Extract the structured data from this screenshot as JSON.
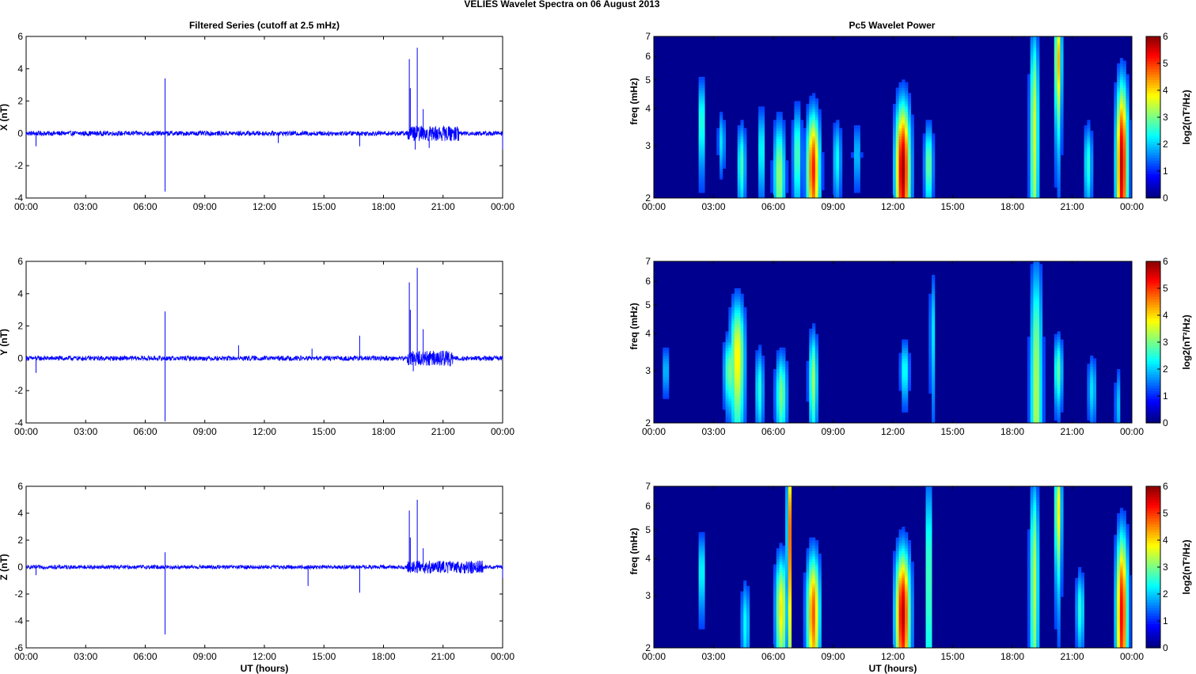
{
  "figure": {
    "title": "VELIES Wavelet Spectra on 06 August    2013",
    "left_title": "Filtered Series (cutoff at 2.5 mHz)",
    "right_title": "Pc5 Wavelet Power",
    "xlabel": "UT (hours)",
    "x_ticks": [
      "00:00",
      "03:00",
      "06:00",
      "09:00",
      "12:00",
      "15:00",
      "18:00",
      "21:00",
      "00:00"
    ],
    "freq_ylabel": "freq (mHz)",
    "freq_ticks": [
      "2",
      "3",
      "4",
      "5",
      "6",
      "7"
    ],
    "colorbar_label": "log2(nT²/Hz)",
    "colorbar_ticks": [
      "0",
      "1",
      "2",
      "3",
      "4",
      "5",
      "6"
    ]
  },
  "colors": {
    "trace": "#0000ff",
    "background_spec": "#00008f"
  },
  "chart_data": [
    {
      "type": "line",
      "component": "X",
      "ylabel": "X (nT)",
      "xlim": [
        0,
        24
      ],
      "ylim": [
        -4,
        6
      ],
      "y_ticks": [
        -4,
        -2,
        0,
        2,
        4,
        6
      ],
      "noise_amplitude_nT": 0.15,
      "spikes": [
        {
          "t": 0.5,
          "v": -0.8
        },
        {
          "t": 7.0,
          "v": 3.4
        },
        {
          "t": 7.0,
          "v": -3.6
        },
        {
          "t": 12.7,
          "v": -0.6
        },
        {
          "t": 16.8,
          "v": -0.8
        },
        {
          "t": 19.3,
          "v": 4.6
        },
        {
          "t": 19.35,
          "v": 2.8
        },
        {
          "t": 19.6,
          "v": -1.0
        },
        {
          "t": 19.7,
          "v": 5.3
        },
        {
          "t": 20.0,
          "v": 1.5
        },
        {
          "t": 20.3,
          "v": -0.9
        },
        {
          "t": 24.0,
          "v": -1.0
        }
      ],
      "active_intervals": [
        [
          19.2,
          21.8
        ]
      ]
    },
    {
      "type": "line",
      "component": "Y",
      "ylabel": "Y (nT)",
      "xlim": [
        0,
        24
      ],
      "ylim": [
        -4,
        6
      ],
      "y_ticks": [
        -4,
        -2,
        0,
        2,
        4,
        6
      ],
      "noise_amplitude_nT": 0.15,
      "spikes": [
        {
          "t": 0.5,
          "v": -0.9
        },
        {
          "t": 7.0,
          "v": 2.9
        },
        {
          "t": 7.0,
          "v": -3.9
        },
        {
          "t": 10.7,
          "v": 0.8
        },
        {
          "t": 14.4,
          "v": 0.6
        },
        {
          "t": 16.8,
          "v": 1.4
        },
        {
          "t": 19.3,
          "v": 4.7
        },
        {
          "t": 19.35,
          "v": 3.0
        },
        {
          "t": 19.5,
          "v": -0.8
        },
        {
          "t": 19.7,
          "v": 5.6
        },
        {
          "t": 20.0,
          "v": 1.8
        }
      ],
      "active_intervals": [
        [
          19.2,
          21.5
        ]
      ]
    },
    {
      "type": "line",
      "component": "Z",
      "ylabel": "Z (nT)",
      "xlim": [
        0,
        24
      ],
      "ylim": [
        -6,
        6
      ],
      "y_ticks": [
        -6,
        -4,
        -2,
        0,
        2,
        4,
        6
      ],
      "noise_amplitude_nT": 0.15,
      "spikes": [
        {
          "t": 0.5,
          "v": -0.6
        },
        {
          "t": 7.0,
          "v": 1.1
        },
        {
          "t": 7.0,
          "v": -5.0
        },
        {
          "t": 14.2,
          "v": -1.4
        },
        {
          "t": 16.8,
          "v": -1.9
        },
        {
          "t": 19.3,
          "v": 4.2
        },
        {
          "t": 19.35,
          "v": 2.2
        },
        {
          "t": 19.7,
          "v": 5.0
        },
        {
          "t": 20.0,
          "v": 1.4
        },
        {
          "t": 24.0,
          "v": -0.8
        }
      ],
      "active_intervals": [
        [
          19.2,
          23.0
        ]
      ]
    },
    {
      "type": "heatmap",
      "component": "X",
      "xlim": [
        0,
        24
      ],
      "ylim_mHz": [
        2,
        7
      ],
      "y_scale": "log",
      "color_range": [
        0,
        6
      ],
      "blobs": [
        {
          "t": 2.4,
          "f": 3.6,
          "w": 0.12,
          "h": 0.9,
          "p": 2.3
        },
        {
          "t": 3.4,
          "f": 3.1,
          "w": 0.12,
          "h": 0.5,
          "p": 1.6
        },
        {
          "t": 4.4,
          "f": 2.6,
          "w": 0.15,
          "h": 0.6,
          "p": 2.2
        },
        {
          "t": 5.4,
          "f": 2.9,
          "w": 0.12,
          "h": 0.7,
          "p": 2.0
        },
        {
          "t": 6.3,
          "f": 2.4,
          "w": 0.2,
          "h": 0.8,
          "p": 2.8
        },
        {
          "t": 7.2,
          "f": 2.8,
          "w": 0.15,
          "h": 0.8,
          "p": 2.4
        },
        {
          "t": 8.0,
          "f": 2.5,
          "w": 0.22,
          "h": 0.9,
          "p": 5.0
        },
        {
          "t": 9.2,
          "f": 2.7,
          "w": 0.15,
          "h": 0.6,
          "p": 1.8
        },
        {
          "t": 10.2,
          "f": 2.8,
          "w": 0.15,
          "h": 0.5,
          "p": 1.4
        },
        {
          "t": 12.5,
          "f": 2.5,
          "w": 0.25,
          "h": 1.1,
          "p": 5.8
        },
        {
          "t": 13.8,
          "f": 2.6,
          "w": 0.15,
          "h": 0.6,
          "p": 2.6
        },
        {
          "t": 19.1,
          "f": 3.4,
          "w": 0.15,
          "h": 2.5,
          "p": 3.2
        },
        {
          "t": 20.3,
          "f": 5.8,
          "w": 0.12,
          "h": 2.0,
          "p": 4.0
        },
        {
          "t": 21.8,
          "f": 2.6,
          "w": 0.15,
          "h": 0.6,
          "p": 2.0
        },
        {
          "t": 23.5,
          "f": 2.6,
          "w": 0.2,
          "h": 1.5,
          "p": 5.6
        }
      ]
    },
    {
      "type": "heatmap",
      "component": "Y",
      "xlim": [
        0,
        24
      ],
      "ylim_mHz": [
        2,
        7
      ],
      "y_scale": "log",
      "color_range": [
        0,
        6
      ],
      "blobs": [
        {
          "t": 0.6,
          "f": 3.0,
          "w": 0.1,
          "h": 0.4,
          "p": 1.6
        },
        {
          "t": 3.8,
          "f": 3.0,
          "w": 0.2,
          "h": 0.6,
          "p": 2.6
        },
        {
          "t": 4.2,
          "f": 3.3,
          "w": 0.25,
          "h": 1.2,
          "p": 3.6
        },
        {
          "t": 5.3,
          "f": 2.6,
          "w": 0.15,
          "h": 0.6,
          "p": 2.0
        },
        {
          "t": 6.4,
          "f": 2.5,
          "w": 0.2,
          "h": 0.6,
          "p": 2.6
        },
        {
          "t": 8.0,
          "f": 2.8,
          "w": 0.15,
          "h": 0.8,
          "p": 2.8
        },
        {
          "t": 12.6,
          "f": 3.0,
          "w": 0.15,
          "h": 0.5,
          "p": 2.0
        },
        {
          "t": 14.0,
          "f": 4.0,
          "w": 0.1,
          "h": 1.5,
          "p": 1.6
        },
        {
          "t": 19.2,
          "f": 2.4,
          "w": 0.2,
          "h": 2.8,
          "p": 3.0
        },
        {
          "t": 20.3,
          "f": 3.0,
          "w": 0.15,
          "h": 0.6,
          "p": 2.4
        },
        {
          "t": 22.0,
          "f": 2.6,
          "w": 0.15,
          "h": 0.5,
          "p": 1.6
        },
        {
          "t": 23.3,
          "f": 2.3,
          "w": 0.1,
          "h": 0.5,
          "p": 1.4
        }
      ]
    },
    {
      "type": "heatmap",
      "component": "Z",
      "xlim": [
        0,
        24
      ],
      "ylim_mHz": [
        2,
        7
      ],
      "y_scale": "log",
      "color_range": [
        0,
        6
      ],
      "blobs": [
        {
          "t": 2.4,
          "f": 3.6,
          "w": 0.12,
          "h": 0.8,
          "p": 2.0
        },
        {
          "t": 4.6,
          "f": 2.4,
          "w": 0.15,
          "h": 0.6,
          "p": 1.8
        },
        {
          "t": 6.4,
          "f": 2.7,
          "w": 0.2,
          "h": 0.9,
          "p": 3.6
        },
        {
          "t": 6.8,
          "f": 4.8,
          "w": 0.08,
          "h": 3.0,
          "p": 4.6
        },
        {
          "t": 8.0,
          "f": 2.6,
          "w": 0.22,
          "h": 1.0,
          "p": 4.6
        },
        {
          "t": 12.5,
          "f": 2.6,
          "w": 0.25,
          "h": 1.1,
          "p": 5.6
        },
        {
          "t": 13.8,
          "f": 3.4,
          "w": 0.1,
          "h": 2.5,
          "p": 2.8
        },
        {
          "t": 19.1,
          "f": 3.4,
          "w": 0.15,
          "h": 2.5,
          "p": 3.0
        },
        {
          "t": 20.3,
          "f": 5.8,
          "w": 0.12,
          "h": 2.0,
          "p": 3.6
        },
        {
          "t": 21.4,
          "f": 2.7,
          "w": 0.15,
          "h": 0.6,
          "p": 2.0
        },
        {
          "t": 23.5,
          "f": 2.6,
          "w": 0.2,
          "h": 1.5,
          "p": 5.2
        }
      ]
    }
  ]
}
